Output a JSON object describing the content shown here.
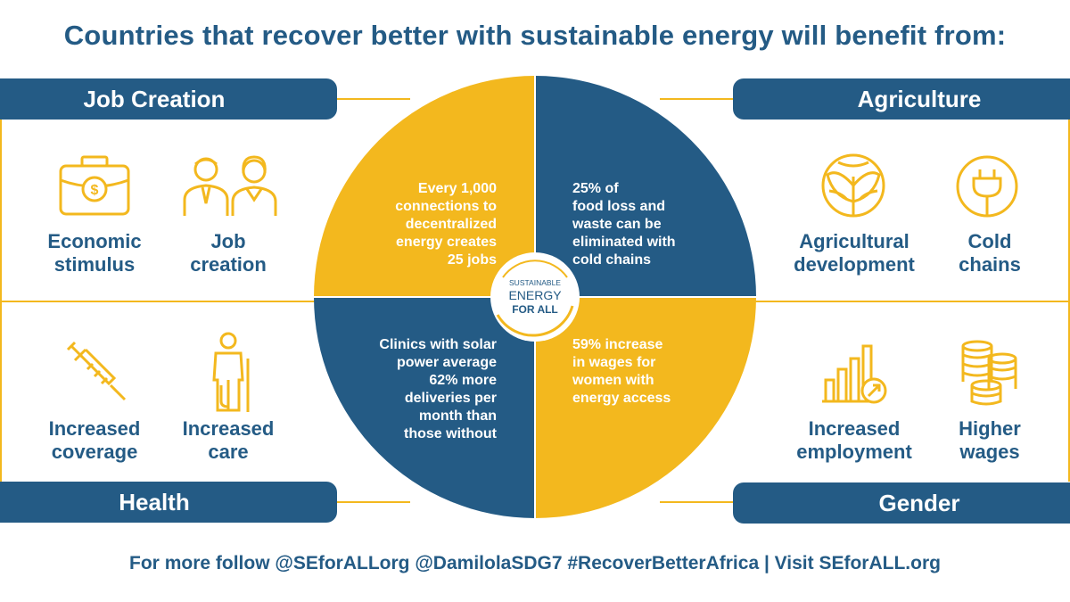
{
  "title": "Countries that recover better with sustainable energy will benefit from:",
  "footer": "For more follow @SEforALLorg @DamilolaSDG7 #RecoverBetterAfrica | Visit SEforALL.org",
  "colors": {
    "blue": "#245b85",
    "gold": "#f3b81e",
    "white": "#ffffff"
  },
  "sections": {
    "job_creation": {
      "heading": "Job Creation",
      "items": [
        {
          "label_line1": "Economic",
          "label_line2": "stimulus",
          "icon": "briefcase-dollar-icon"
        },
        {
          "label_line1": "Job",
          "label_line2": "creation",
          "icon": "two-people-icon"
        }
      ]
    },
    "agriculture": {
      "heading": "Agriculture",
      "items": [
        {
          "label_line1": "Agricultural",
          "label_line2": "development",
          "icon": "cabbage-icon"
        },
        {
          "label_line1": "Cold",
          "label_line2": "chains",
          "icon": "plug-icon"
        }
      ]
    },
    "health": {
      "heading": "Health",
      "items": [
        {
          "label_line1": "Increased",
          "label_line2": "coverage",
          "icon": "syringe-icon"
        },
        {
          "label_line1": "Increased",
          "label_line2": "care",
          "icon": "person-crutch-icon"
        }
      ]
    },
    "gender": {
      "heading": "Gender",
      "items": [
        {
          "label_line1": "Increased",
          "label_line2": "employment",
          "icon": "bar-growth-icon"
        },
        {
          "label_line1": "Higher",
          "label_line2": "wages",
          "icon": "coin-stacks-icon"
        }
      ]
    }
  },
  "quadrants": {
    "top_left": [
      "Every 1,000",
      "connections to",
      "decentralized",
      "energy creates",
      "25 jobs"
    ],
    "top_right": [
      "25% of",
      "food loss and",
      "waste can be",
      "eliminated with",
      "cold chains"
    ],
    "bottom_left": [
      "Clinics with solar",
      "power average",
      "62% more",
      "deliveries per",
      "month than",
      "those without"
    ],
    "bottom_right": [
      "59% increase",
      "in wages for",
      "women with",
      "energy access"
    ]
  },
  "logo": {
    "line1": "SUSTAINABLE",
    "line2": "ENERGY",
    "line3": "FOR ALL"
  }
}
